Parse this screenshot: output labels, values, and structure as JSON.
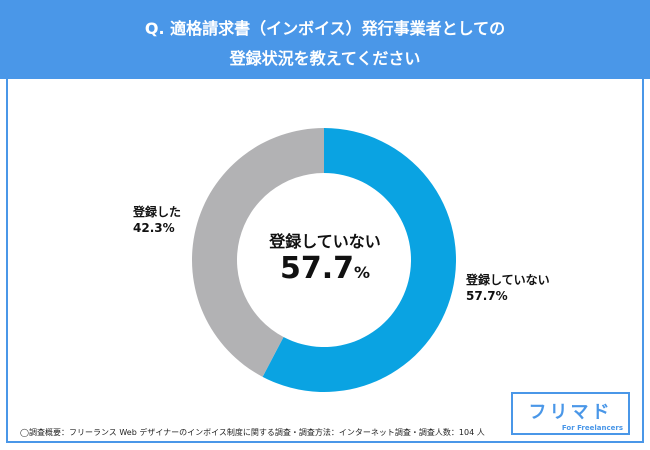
{
  "title": {
    "line1": "Q. 適格請求書（インボイス）発行事業者としての",
    "line2": "登録状況を教えてください"
  },
  "chart_data": {
    "type": "pie",
    "style": "donut",
    "categories": [
      "登録していない",
      "登録した"
    ],
    "values": [
      57.7,
      42.3
    ],
    "unit": "%",
    "colors": [
      "#0aa3e2",
      "#b2b2b4"
    ],
    "center_label": {
      "category": "登録していない",
      "value": "57.7",
      "unit": "%"
    },
    "slice_labels": [
      {
        "category": "登録していない",
        "value": "57.7%"
      },
      {
        "category": "登録した",
        "value": "42.3%"
      }
    ]
  },
  "note": "◯調査概要：フリーランス Web デザイナーのインボイス制度に関する調査・調査方法：インターネット調査・調査人数：104 人",
  "logo": {
    "main": "フリマド",
    "sub": "For Freelancers"
  },
  "colors": {
    "header": "#4a97e8"
  }
}
